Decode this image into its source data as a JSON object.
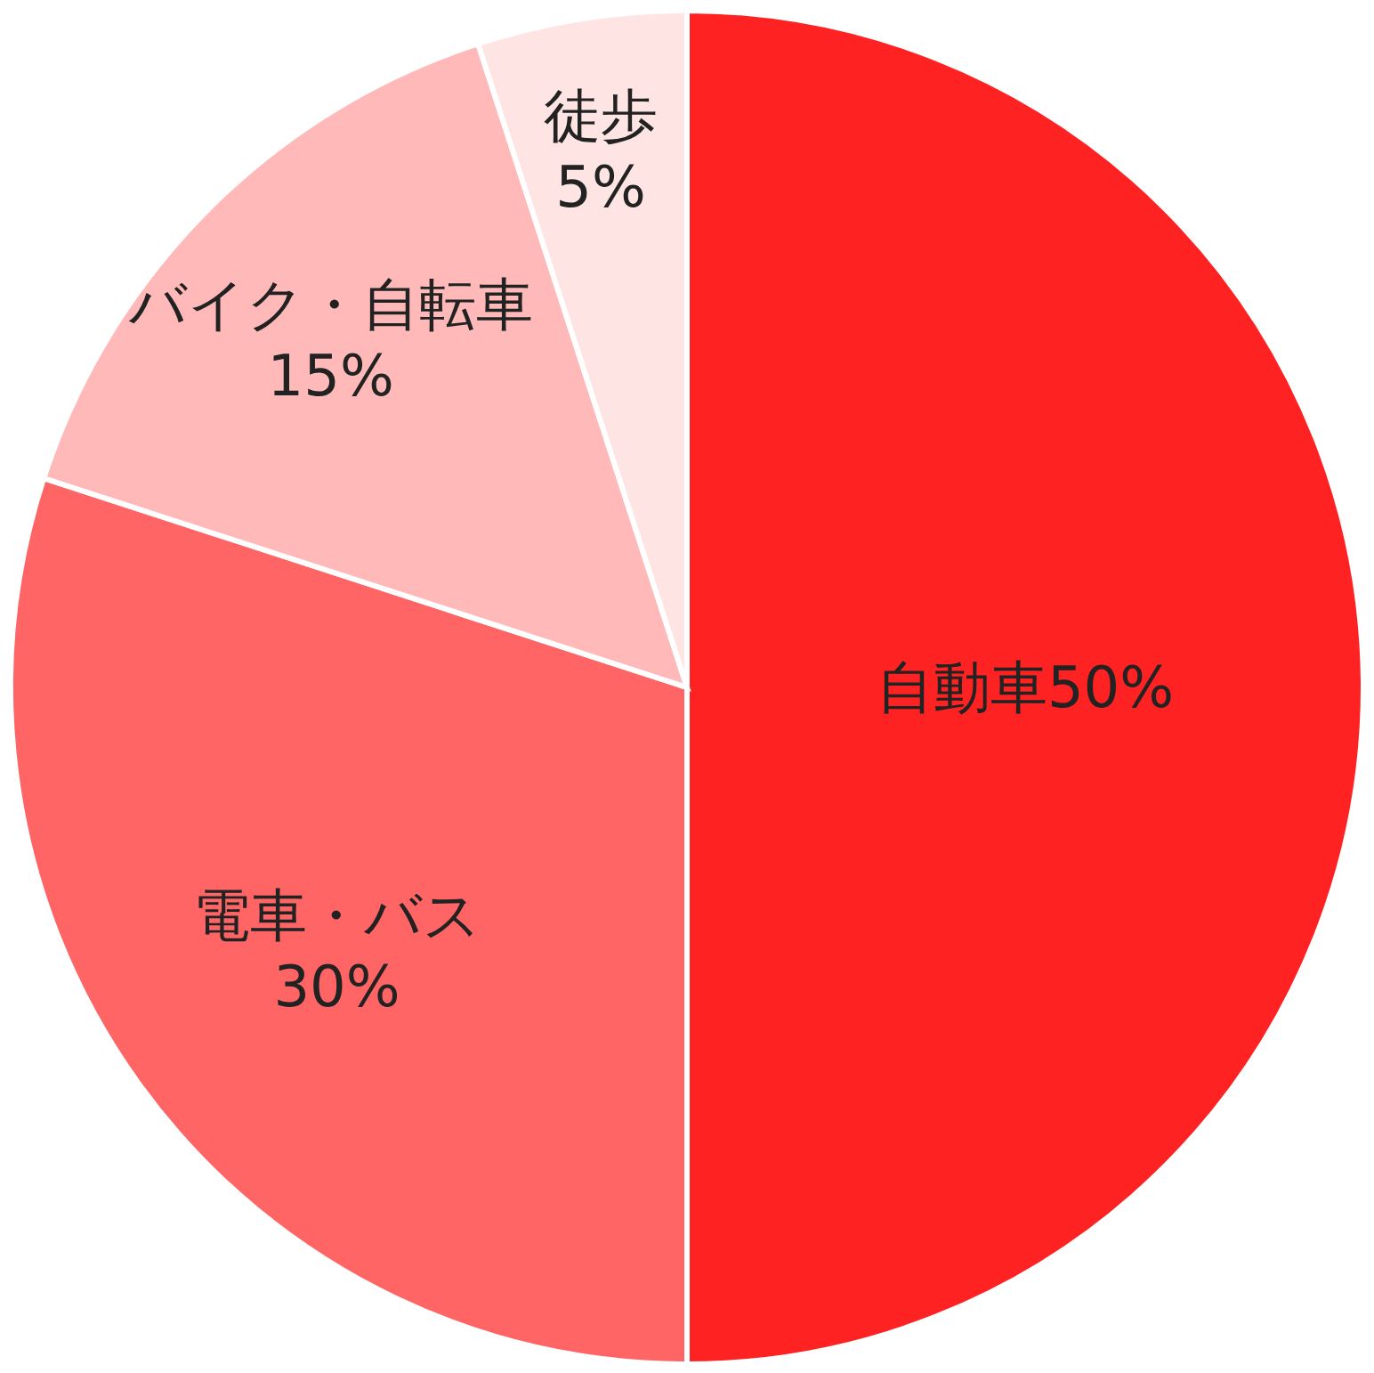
{
  "chart_data": {
    "type": "pie",
    "categories": [
      "自動車",
      "電車・バス",
      "バイク・自転車",
      "徒歩"
    ],
    "values": [
      50,
      30,
      15,
      5
    ],
    "colors": [
      "#fe2222",
      "#ff6565",
      "#ffb9b9",
      "#ffe4e4"
    ],
    "value_labels": [
      "50%",
      "30%",
      "15%",
      "5%"
    ]
  }
}
